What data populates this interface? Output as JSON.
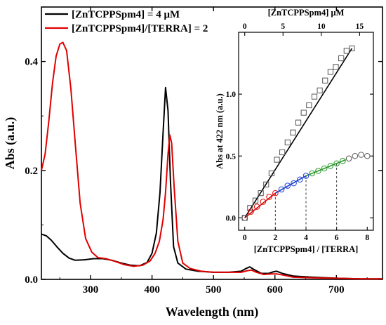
{
  "chart_data": [
    {
      "type": "line",
      "xlabel": "Wavelength (nm)",
      "ylabel": "Abs (a.u.)",
      "xlim": [
        220,
        775
      ],
      "ylim": [
        0,
        0.5
      ],
      "x_ticks": [
        300,
        400,
        500,
        600,
        700
      ],
      "y_ticks": [
        0.0,
        0.2,
        0.4
      ],
      "y_tick_labels": [
        "0.0",
        "0.2",
        "0.4"
      ],
      "legend_position": "top-left",
      "series": [
        {
          "name": "[ZnTCPPSpm4] = 4 μM",
          "color": "#000000",
          "points": [
            [
              220,
              0.083
            ],
            [
              228,
              0.08
            ],
            [
              236,
              0.072
            ],
            [
              245,
              0.06
            ],
            [
              255,
              0.048
            ],
            [
              265,
              0.039
            ],
            [
              275,
              0.035
            ],
            [
              290,
              0.036
            ],
            [
              305,
              0.038
            ],
            [
              320,
              0.038
            ],
            [
              335,
              0.035
            ],
            [
              350,
              0.03
            ],
            [
              365,
              0.026
            ],
            [
              380,
              0.025
            ],
            [
              392,
              0.031
            ],
            [
              400,
              0.048
            ],
            [
              407,
              0.085
            ],
            [
              413,
              0.16
            ],
            [
              418,
              0.27
            ],
            [
              422,
              0.352
            ],
            [
              426,
              0.31
            ],
            [
              430,
              0.18
            ],
            [
              435,
              0.06
            ],
            [
              442,
              0.03
            ],
            [
              455,
              0.019
            ],
            [
              475,
              0.015
            ],
            [
              500,
              0.013
            ],
            [
              525,
              0.013
            ],
            [
              545,
              0.015
            ],
            [
              553,
              0.02
            ],
            [
              559,
              0.023
            ],
            [
              566,
              0.018
            ],
            [
              578,
              0.011
            ],
            [
              590,
              0.011
            ],
            [
              598,
              0.014
            ],
            [
              603,
              0.015
            ],
            [
              612,
              0.011
            ],
            [
              630,
              0.006
            ],
            [
              660,
              0.004
            ],
            [
              700,
              0.002
            ],
            [
              740,
              0.001
            ],
            [
              775,
              0.001
            ]
          ]
        },
        {
          "name": "[ZnTCPPSpm4]/[TERRA] = 2",
          "color": "#e00000",
          "points": [
            [
              220,
              0.2
            ],
            [
              226,
              0.23
            ],
            [
              232,
              0.29
            ],
            [
              238,
              0.36
            ],
            [
              244,
              0.41
            ],
            [
              250,
              0.432
            ],
            [
              255,
              0.435
            ],
            [
              261,
              0.42
            ],
            [
              268,
              0.35
            ],
            [
              275,
              0.25
            ],
            [
              283,
              0.14
            ],
            [
              292,
              0.075
            ],
            [
              302,
              0.05
            ],
            [
              312,
              0.04
            ],
            [
              325,
              0.038
            ],
            [
              340,
              0.033
            ],
            [
              355,
              0.027
            ],
            [
              370,
              0.024
            ],
            [
              385,
              0.026
            ],
            [
              397,
              0.034
            ],
            [
              405,
              0.048
            ],
            [
              412,
              0.07
            ],
            [
              418,
              0.11
            ],
            [
              422,
              0.16
            ],
            [
              426,
              0.23
            ],
            [
              429,
              0.265
            ],
            [
              432,
              0.25
            ],
            [
              436,
              0.17
            ],
            [
              442,
              0.07
            ],
            [
              450,
              0.03
            ],
            [
              462,
              0.02
            ],
            [
              480,
              0.015
            ],
            [
              500,
              0.013
            ],
            [
              525,
              0.013
            ],
            [
              545,
              0.013
            ],
            [
              555,
              0.016
            ],
            [
              562,
              0.017
            ],
            [
              570,
              0.013
            ],
            [
              582,
              0.009
            ],
            [
              594,
              0.01
            ],
            [
              603,
              0.01
            ],
            [
              613,
              0.008
            ],
            [
              630,
              0.004
            ],
            [
              660,
              0.003
            ],
            [
              700,
              0.002
            ],
            [
              740,
              0.001
            ],
            [
              775,
              0.001
            ]
          ]
        }
      ]
    },
    {
      "type": "scatter",
      "xlabel": "[ZnTCPPSpm4] / [TERRA]",
      "ylabel": "Abs at 422 nm (a.u.)",
      "top_xlabel": "[ZnTCPPSpm4] μM",
      "xlim": [
        -0.4,
        8.4
      ],
      "ylim": [
        -0.1,
        1.5
      ],
      "x_ticks": [
        0,
        2,
        4,
        6,
        8
      ],
      "y_ticks": [
        0.0,
        0.5,
        1.0
      ],
      "y_tick_labels": [
        "0.0",
        "0.5",
        "1.0"
      ],
      "top_ticks": [
        0,
        5,
        10,
        15
      ],
      "top_scale": 2,
      "squares": {
        "color": "#555555",
        "x": [
          0,
          0.35,
          0.7,
          1.05,
          1.4,
          1.75,
          2.1,
          2.45,
          2.8,
          3.15,
          3.5,
          3.85,
          4.2,
          4.55,
          4.9,
          5.25,
          5.6,
          5.95,
          6.3,
          6.65,
          7.0
        ],
        "y": [
          0.0,
          0.08,
          0.14,
          0.2,
          0.27,
          0.36,
          0.47,
          0.53,
          0.61,
          0.69,
          0.77,
          0.85,
          0.91,
          0.98,
          1.03,
          1.11,
          1.18,
          1.22,
          1.29,
          1.35,
          1.37
        ]
      },
      "circles": {
        "x": [
          0,
          0.4,
          0.8,
          1.2,
          1.6,
          2.0,
          2.4,
          2.8,
          3.2,
          3.6,
          4.0,
          4.4,
          4.8,
          5.2,
          5.6,
          6.0,
          6.4,
          6.8,
          7.2,
          7.6,
          8.0
        ],
        "y": [
          0.0,
          0.05,
          0.09,
          0.13,
          0.17,
          0.2,
          0.23,
          0.26,
          0.28,
          0.31,
          0.34,
          0.36,
          0.38,
          0.4,
          0.42,
          0.44,
          0.46,
          0.48,
          0.5,
          0.51,
          0.5
        ],
        "colors": [
          "#555555",
          "#e00000",
          "#e00000",
          "#e00000",
          "#e00000",
          "#e00000",
          "#1a3fd0",
          "#1a3fd0",
          "#1a3fd0",
          "#1a3fd0",
          "#1a3fd0",
          "#2a9a2a",
          "#2a9a2a",
          "#2a9a2a",
          "#2a9a2a",
          "#2a9a2a",
          "#2a9a2a",
          "#555555",
          "#555555",
          "#555555",
          "#555555"
        ]
      },
      "fit_lines": [
        {
          "color": "#000000",
          "x": [
            0,
            7.0
          ],
          "y": [
            0.0,
            1.37
          ]
        },
        {
          "color": "#e00000",
          "x": [
            0,
            2.0
          ],
          "y": [
            0.0,
            0.2
          ]
        },
        {
          "color": "#1a3fd0",
          "x": [
            2.0,
            4.0
          ],
          "y": [
            0.2,
            0.34
          ]
        },
        {
          "color": "#2a9a2a",
          "x": [
            4.0,
            6.6
          ],
          "y": [
            0.34,
            0.47
          ]
        }
      ],
      "dashed_markers": [
        {
          "x": 2.0,
          "y": 0.2
        },
        {
          "x": 4.0,
          "y": 0.34
        },
        {
          "x": 6.0,
          "y": 0.44
        }
      ]
    }
  ]
}
